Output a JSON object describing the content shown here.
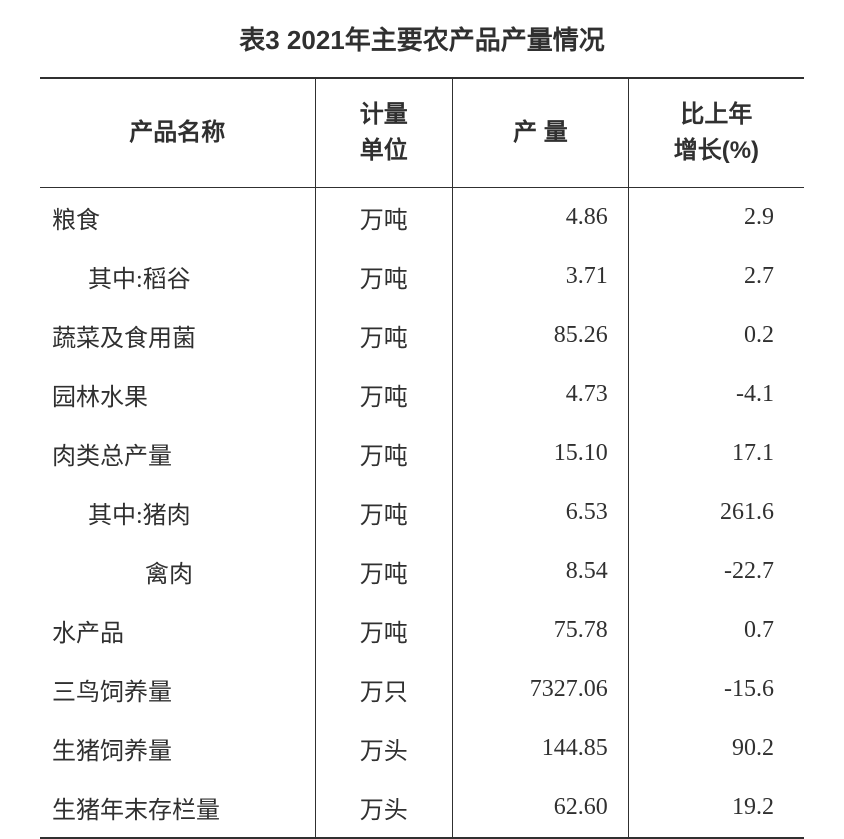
{
  "table": {
    "title": "表3 2021年主要农产品产量情况",
    "title_fontsize": 26,
    "body_fontsize": 24,
    "text_color": "#303030",
    "background_color": "#ffffff",
    "border_color": "#303030",
    "border_top_width": 2,
    "border_header_width": 1.5,
    "border_bottom_width": 2,
    "columns": [
      {
        "label": "产品名称",
        "align": "left",
        "width_pct": 36
      },
      {
        "label": "计量\n单位",
        "align": "center",
        "width_pct": 18
      },
      {
        "label": "产 量",
        "align": "right",
        "width_pct": 23
      },
      {
        "label": "比上年\n增长(%)",
        "align": "right",
        "width_pct": 23
      }
    ],
    "rows": [
      {
        "name": "粮食",
        "indent": 0,
        "unit": "万吨",
        "output": "4.86",
        "growth": "2.9"
      },
      {
        "name": "其中:稻谷",
        "indent": 1,
        "unit": "万吨",
        "output": "3.71",
        "growth": "2.7"
      },
      {
        "name": "蔬菜及食用菌",
        "indent": 0,
        "unit": "万吨",
        "output": "85.26",
        "growth": "0.2"
      },
      {
        "name": "园林水果",
        "indent": 0,
        "unit": "万吨",
        "output": "4.73",
        "growth": "-4.1"
      },
      {
        "name": "肉类总产量",
        "indent": 0,
        "unit": "万吨",
        "output": "15.10",
        "growth": "17.1"
      },
      {
        "name": "其中:猪肉",
        "indent": 1,
        "unit": "万吨",
        "output": "6.53",
        "growth": "261.6"
      },
      {
        "name": "禽肉",
        "indent": 2,
        "unit": "万吨",
        "output": "8.54",
        "growth": "-22.7"
      },
      {
        "name": "水产品",
        "indent": 0,
        "unit": "万吨",
        "output": "75.78",
        "growth": "0.7"
      },
      {
        "name": "三鸟饲养量",
        "indent": 0,
        "unit": "万只",
        "output": "7327.06",
        "growth": "-15.6"
      },
      {
        "name": "生猪饲养量",
        "indent": 0,
        "unit": "万头",
        "output": "144.85",
        "growth": "90.2"
      },
      {
        "name": "生猪年末存栏量",
        "indent": 0,
        "unit": "万头",
        "output": "62.60",
        "growth": "19.2"
      }
    ]
  }
}
